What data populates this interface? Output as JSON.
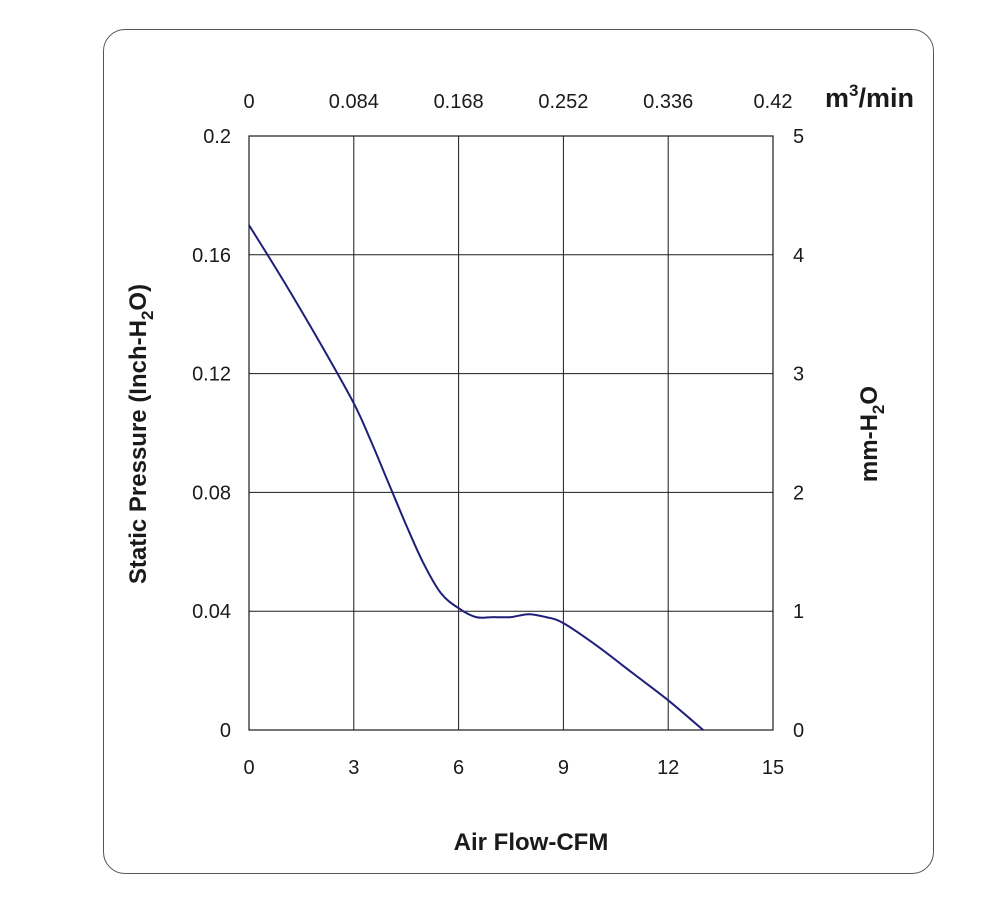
{
  "chart_data": {
    "type": "line",
    "title": "",
    "xlabel": "Air Flow-CFM",
    "ylabel": "Static Pressure (Inch-H2O)",
    "ylabel_parts": [
      "Static Pressure (Inch-H",
      "2",
      "O)"
    ],
    "x2label_parts": [
      "m",
      "3",
      "/min"
    ],
    "y2label_parts": [
      "mm-H",
      "2",
      "O"
    ],
    "xlim": [
      0,
      15
    ],
    "ylim": [
      0,
      0.2
    ],
    "x2lim": [
      0,
      0.42
    ],
    "y2lim": [
      0,
      5
    ],
    "xticks": [
      "0",
      "3",
      "6",
      "9",
      "12",
      "15"
    ],
    "yticks": [
      "0",
      "0.04",
      "0.08",
      "0.12",
      "0.16",
      "0.2"
    ],
    "x2ticks": [
      "0",
      "0.084",
      "0.168",
      "0.252",
      "0.336",
      "0.42"
    ],
    "y2ticks": [
      "0",
      "1",
      "2",
      "3",
      "4",
      "5"
    ],
    "grid": true,
    "line_color": "#1f1f7a",
    "series": [
      {
        "x": [
          0,
          1,
          2,
          3,
          3.5,
          4,
          4.5,
          5,
          5.5,
          6,
          6.5,
          7,
          7.5,
          8,
          8.5,
          9,
          10,
          11,
          12,
          13
        ],
        "values": [
          0.17,
          0.151,
          0.131,
          0.11,
          0.097,
          0.083,
          0.069,
          0.056,
          0.046,
          0.041,
          0.038,
          0.038,
          0.038,
          0.039,
          0.038,
          0.036,
          0.028,
          0.019,
          0.01,
          0.0
        ]
      }
    ]
  }
}
